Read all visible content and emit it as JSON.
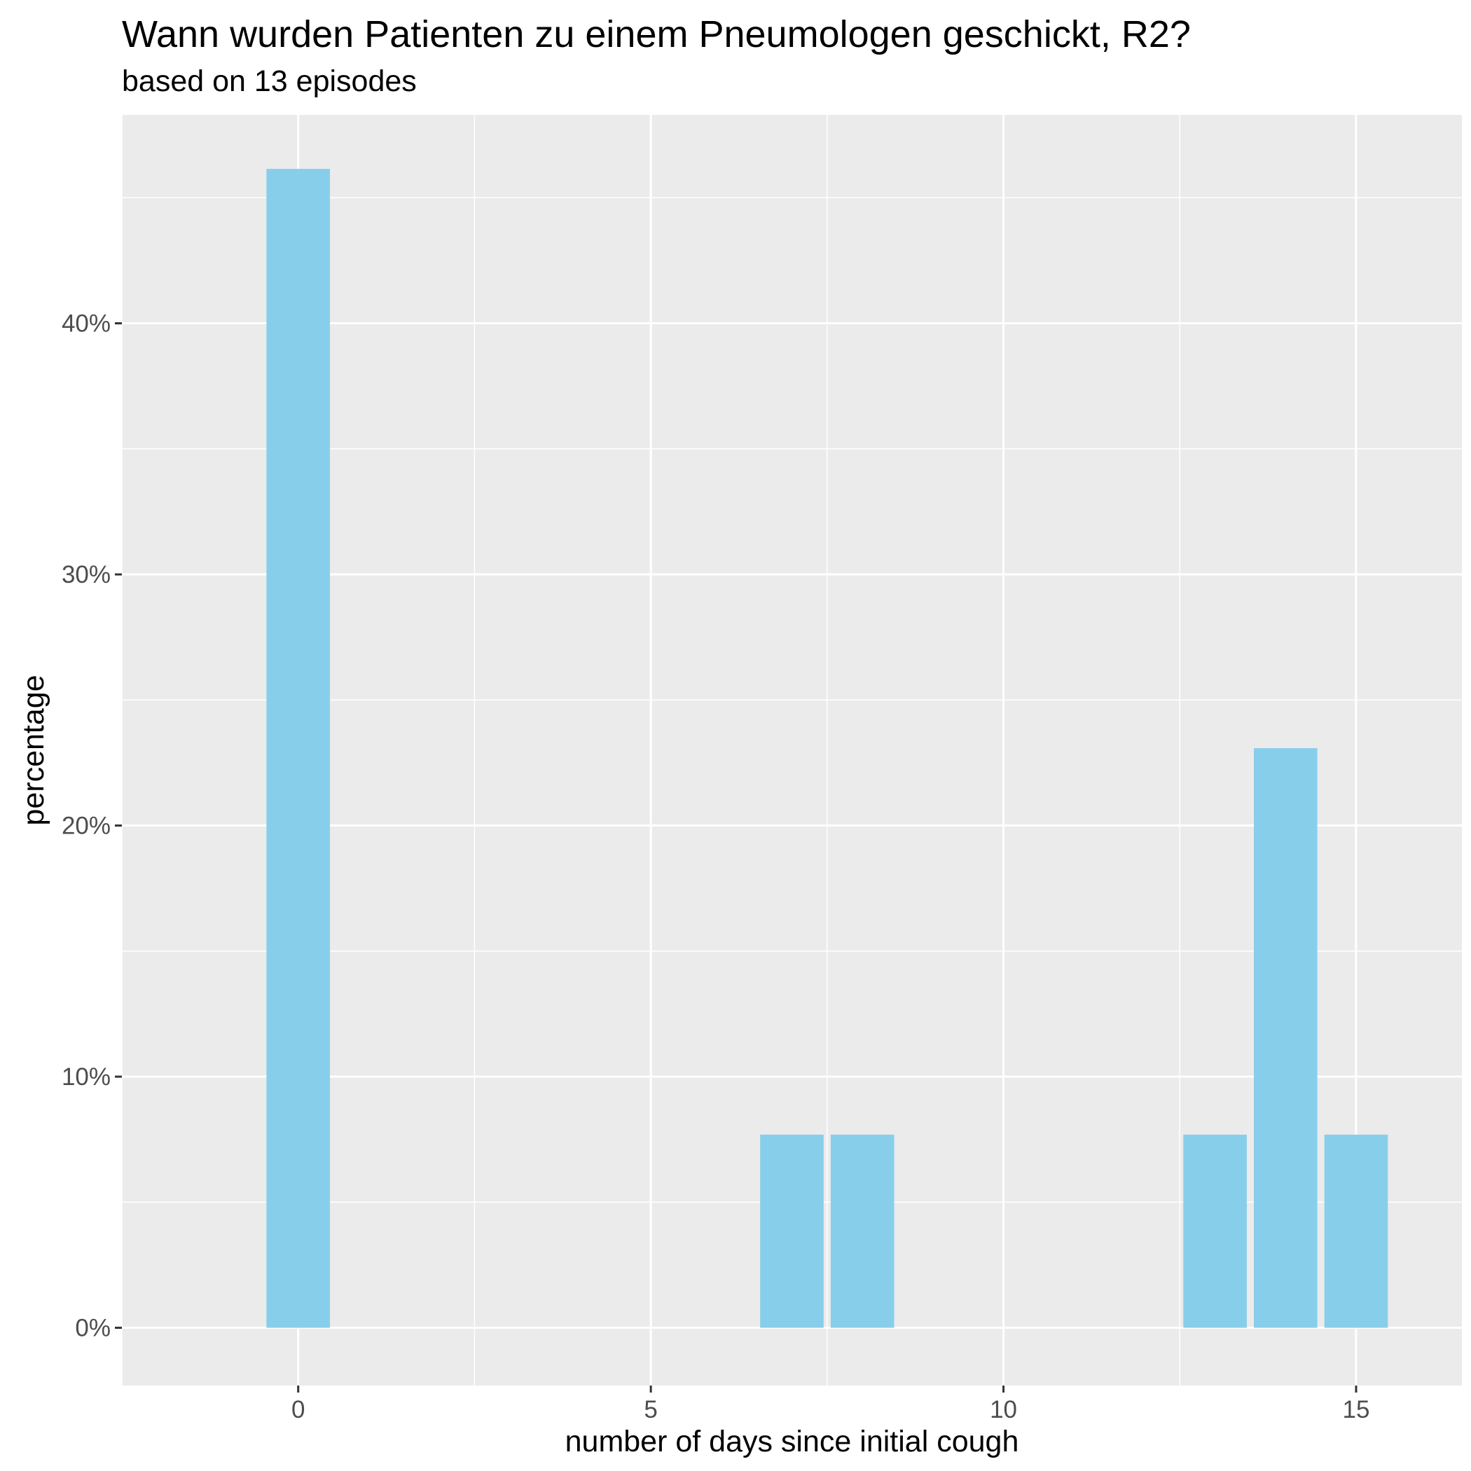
{
  "chart_data": {
    "type": "bar",
    "title": "Wann wurden Patienten zu einem Pneumologen geschickt, R2?",
    "subtitle": "based on 13 episodes",
    "xlabel": "number of days since initial cough",
    "ylabel": "percentage",
    "x": [
      0,
      7,
      8,
      13,
      14,
      15
    ],
    "values": [
      46.15,
      7.69,
      7.69,
      7.69,
      23.08,
      7.69
    ],
    "xlim": [
      -2.5,
      16.5
    ],
    "ylim": [
      -2.3,
      48.3
    ],
    "x_ticks": [
      0,
      5,
      10,
      15
    ],
    "x_tick_labels": [
      "0",
      "5",
      "10",
      "15"
    ],
    "y_ticks": [
      0,
      10,
      20,
      30,
      40
    ],
    "y_tick_labels": [
      "0%",
      "10%",
      "20%",
      "30%",
      "40%"
    ],
    "bar_color": "#87CEEB",
    "panel_color": "#EBEBEB",
    "grid_color": "#FFFFFF",
    "grid": true
  }
}
